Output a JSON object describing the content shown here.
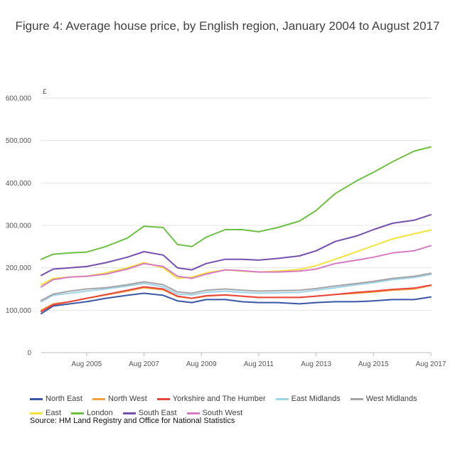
{
  "title": "Figure 4: Average house price, by English region, January 2004 to August 2017",
  "source": "Source: HM Land Registry and Office for National Statistics",
  "chart_data": {
    "type": "line",
    "title": "Figure 4: Average house price, by English region, January 2004 to August 2017",
    "ylabel": "£",
    "xlabel": "",
    "ylim": [
      0,
      600000
    ],
    "xlim": [
      "2004-01",
      "2017-08"
    ],
    "y_ticks": [
      "0",
      "100,000",
      "200,000",
      "300,000",
      "400,000",
      "500,000",
      "600,000"
    ],
    "x_ticks": [
      "Aug 2005",
      "Aug 2007",
      "Aug 2009",
      "Aug 2011",
      "Aug 2013",
      "Aug 2015",
      "Aug 2017"
    ],
    "grid": "horizontal",
    "legend_position": "bottom",
    "x": [
      "2004-01",
      "2004-06",
      "2005-01",
      "2005-08",
      "2006-04",
      "2007-01",
      "2007-08",
      "2008-04",
      "2008-10",
      "2009-04",
      "2009-10",
      "2010-06",
      "2011-01",
      "2011-08",
      "2012-04",
      "2013-01",
      "2013-08",
      "2014-04",
      "2015-01",
      "2015-08",
      "2016-04",
      "2017-01",
      "2017-08"
    ],
    "series": [
      {
        "name": "North East",
        "color": "#3a57a6",
        "values": [
          92000,
          110000,
          115000,
          120000,
          128000,
          135000,
          140000,
          135000,
          122000,
          118000,
          125000,
          125000,
          120000,
          118000,
          118000,
          115000,
          118000,
          120000,
          120000,
          122000,
          125000,
          125000,
          131000
        ]
      },
      {
        "name": "North West",
        "color": "#f5a041",
        "values": [
          100000,
          115000,
          120000,
          128000,
          136000,
          145000,
          153000,
          148000,
          132000,
          128000,
          133000,
          136000,
          133000,
          130000,
          130000,
          130000,
          133000,
          137000,
          140000,
          143000,
          147000,
          150000,
          158000
        ]
      },
      {
        "name": "Yorkshire and The Humber",
        "color": "#e8453c",
        "values": [
          97000,
          113000,
          120000,
          128000,
          137000,
          147000,
          155000,
          150000,
          133000,
          128000,
          134000,
          136000,
          133000,
          130000,
          130000,
          130000,
          133000,
          137000,
          142000,
          145000,
          149000,
          152000,
          159000
        ]
      },
      {
        "name": "East Midlands",
        "color": "#9fd3e8",
        "values": [
          120000,
          135000,
          140000,
          145000,
          150000,
          157000,
          163000,
          155000,
          138000,
          136000,
          142000,
          145000,
          142000,
          140000,
          141000,
          142000,
          147000,
          153000,
          160000,
          165000,
          172000,
          177000,
          184000
        ]
      },
      {
        "name": "West Midlands",
        "color": "#a5a5a5",
        "values": [
          123000,
          138000,
          145000,
          150000,
          153000,
          160000,
          167000,
          160000,
          143000,
          140000,
          147000,
          150000,
          147000,
          145000,
          146000,
          147000,
          151000,
          157000,
          163000,
          168000,
          175000,
          180000,
          187000
        ]
      },
      {
        "name": "East",
        "color": "#f3e33d",
        "values": [
          160000,
          175000,
          178000,
          180000,
          188000,
          200000,
          212000,
          200000,
          175000,
          178000,
          188000,
          195000,
          192000,
          190000,
          192000,
          196000,
          205000,
          220000,
          238000,
          252000,
          268000,
          280000,
          289000
        ]
      },
      {
        "name": "London",
        "color": "#6fbf44",
        "values": [
          220000,
          232000,
          235000,
          237000,
          250000,
          270000,
          298000,
          295000,
          255000,
          250000,
          272000,
          290000,
          290000,
          285000,
          295000,
          310000,
          335000,
          375000,
          405000,
          425000,
          450000,
          475000,
          485000
        ]
      },
      {
        "name": "South East",
        "color": "#7650ad",
        "values": [
          182000,
          197000,
          200000,
          203000,
          212000,
          225000,
          238000,
          230000,
          200000,
          195000,
          210000,
          220000,
          220000,
          218000,
          222000,
          228000,
          240000,
          262000,
          275000,
          290000,
          305000,
          312000,
          325000
        ]
      },
      {
        "name": "South West",
        "color": "#d67bc2",
        "values": [
          155000,
          172000,
          178000,
          180000,
          185000,
          197000,
          210000,
          203000,
          180000,
          175000,
          185000,
          195000,
          193000,
          190000,
          190000,
          192000,
          197000,
          210000,
          218000,
          225000,
          235000,
          240000,
          252000
        ]
      }
    ]
  }
}
